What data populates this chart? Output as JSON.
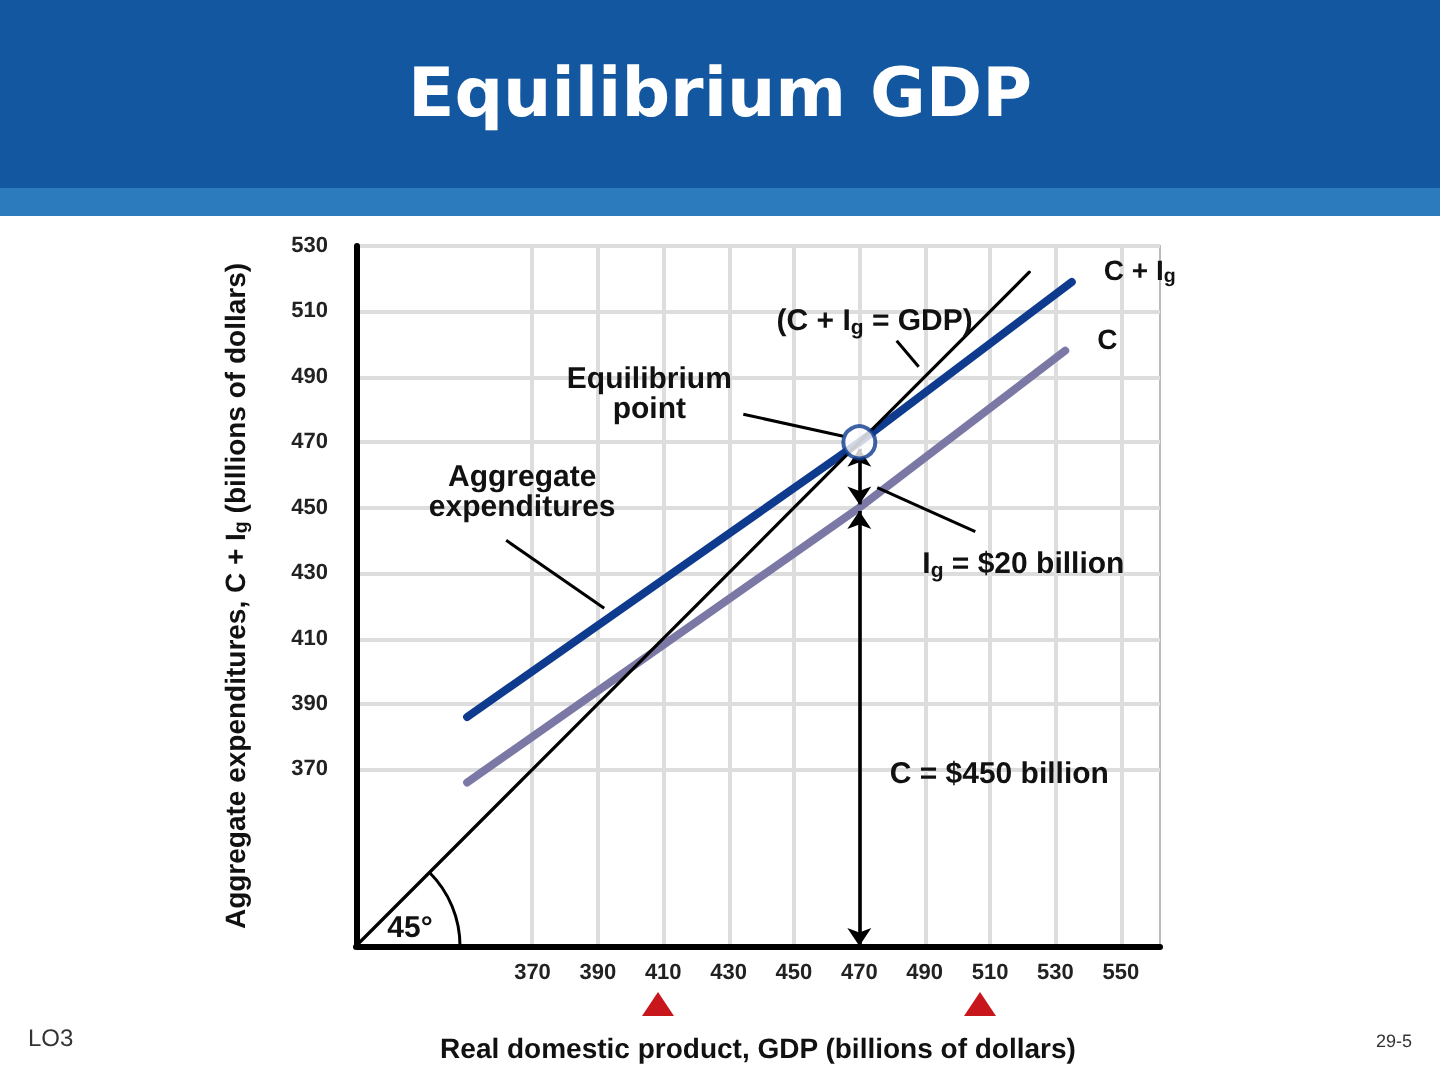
{
  "chart_data": {
    "type": "line",
    "title": "Equilibrium GDP",
    "xlabel": "Real domestic product, GDP (billions of dollars)",
    "ylabel": "Aggregate expenditures, C + I$_{g}$ (billions of dollars)",
    "series": [
      {
        "name": "C + I$_{g}$",
        "color": "#0e3b8e",
        "x": [
          350,
          470,
          535
        ],
        "values": [
          386,
          470,
          519
        ]
      },
      {
        "name": "C",
        "color": "#7b78a6",
        "x": [
          350,
          470,
          533
        ],
        "values": [
          366,
          450,
          498
        ]
      },
      {
        "color": "#000000",
        "x": [
          316,
          522
        ],
        "values": [
          316,
          522
        ]
      },
      {
        "type": "scatter",
        "color": "#0e3b8e",
        "marker": "circle",
        "x": [
          470
        ],
        "values": [
          470
        ]
      }
    ],
    "xlim": [
      316,
      562
    ],
    "ylim": [
      316,
      530
    ],
    "xticks": [
      370,
      390,
      410,
      430,
      450,
      470,
      490,
      510,
      530,
      550
    ],
    "yticks": [
      370,
      390,
      410,
      430,
      450,
      470,
      490,
      510,
      530
    ],
    "grid": true,
    "marker": "none",
    "annotations": [
      {
        "text": "(C + I$_{g}$ = GDP)",
        "x": 490,
        "y": 490
      },
      {
        "text": "Equilibrium\npoint",
        "x": 470,
        "y": 470
      },
      {
        "text": "Aggregate\nexpenditures",
        "x": 395,
        "y": 418
      },
      {
        "text": "I$_{g}$ = $20 billion",
        "x": 470,
        "y": 450
      },
      "C = $450 billion",
      {
        "text": "45°",
        "x": 316,
        "y": 316
      },
      "LO3",
      "29-5"
    ]
  }
}
